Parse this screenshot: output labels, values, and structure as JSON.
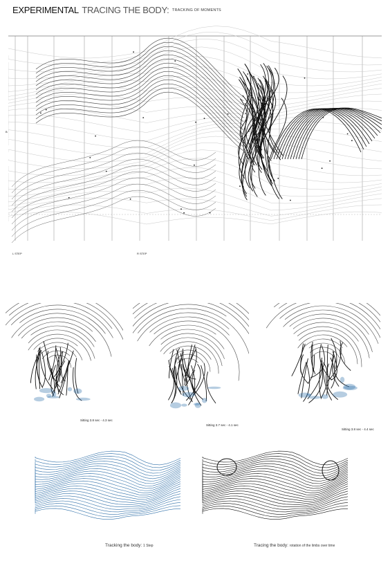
{
  "header": {
    "title_bold": "EXPERIMENTAL",
    "title_thin": "TRACING THE BODY:",
    "title_small": "TRACKING OF MOMENTS"
  },
  "main_figure": {
    "left_axis_label": "B",
    "step_left": "L STEP",
    "step_right": "R STEP"
  },
  "captions": {
    "sitting_1": "Sitting 3.8 sec - 4.3 sec",
    "sitting_2": "Sitting 3.7 sec - 4.1 sec",
    "sitting_3": "Sitting 3.8 sec - 4.4 sec",
    "tracking_main": "Tracking the body:",
    "tracking_sub": "1 Step",
    "tracing_main": "Tracing the body:",
    "tracing_sub": "rotation of the limbs over time"
  },
  "colors": {
    "ink": "#111111",
    "grey": "#9a9a9a",
    "blue": "#2f6fa8"
  }
}
